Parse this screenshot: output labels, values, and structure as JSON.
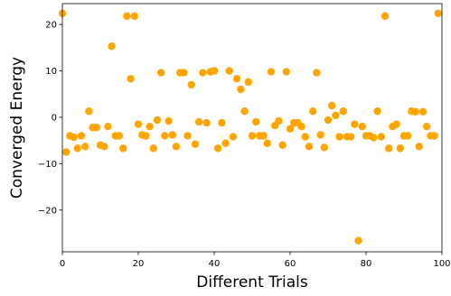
{
  "chart_data": {
    "type": "scatter",
    "xlabel": "Different Trials",
    "ylabel": "Converged Energy",
    "xlim": [
      0,
      100
    ],
    "ylim": [
      -29,
      24.5
    ],
    "xticks": [
      0,
      20,
      40,
      60,
      80,
      100
    ],
    "yticks": [
      -20,
      -10,
      0,
      10,
      20
    ],
    "xtick_labels": [
      "0",
      "20",
      "40",
      "60",
      "80",
      "100"
    ],
    "ytick_labels": [
      "−20",
      "−10",
      "0",
      "10",
      "20"
    ],
    "grid": false,
    "marker_color": "#FFA500",
    "series": [
      {
        "points": [
          [
            0,
            22.4
          ],
          [
            1,
            -7.5
          ],
          [
            2,
            -4
          ],
          [
            3,
            -4.3
          ],
          [
            4,
            -6.7
          ],
          [
            5,
            -4
          ],
          [
            6,
            -6.3
          ],
          [
            7,
            1.3
          ],
          [
            8,
            -2.2
          ],
          [
            9,
            -2.2
          ],
          [
            10,
            -6
          ],
          [
            11,
            -6.3
          ],
          [
            12,
            -2
          ],
          [
            13,
            15.3
          ],
          [
            14,
            -4
          ],
          [
            15,
            -4
          ],
          [
            16,
            -6.7
          ],
          [
            17,
            21.8
          ],
          [
            18,
            8.3
          ],
          [
            19,
            21.8
          ],
          [
            20,
            -1.5
          ],
          [
            21,
            -3.8
          ],
          [
            22,
            -4
          ],
          [
            23,
            -2
          ],
          [
            24,
            -6.7
          ],
          [
            25,
            -0.6
          ],
          [
            26,
            9.6
          ],
          [
            27,
            -4
          ],
          [
            28,
            -0.8
          ],
          [
            29,
            -3.8
          ],
          [
            30,
            -6.3
          ],
          [
            31,
            9.6
          ],
          [
            32,
            9.6
          ],
          [
            33,
            -4
          ],
          [
            34,
            7
          ],
          [
            35,
            -5.8
          ],
          [
            36,
            -1
          ],
          [
            37,
            9.6
          ],
          [
            38,
            -1.2
          ],
          [
            39,
            9.8
          ],
          [
            40,
            10
          ],
          [
            41,
            -6.7
          ],
          [
            42,
            -1.2
          ],
          [
            43,
            -5.6
          ],
          [
            44,
            10
          ],
          [
            45,
            -4.2
          ],
          [
            46,
            8.3
          ],
          [
            47,
            6
          ],
          [
            48,
            1.3
          ],
          [
            49,
            7.6
          ],
          [
            50,
            -4
          ],
          [
            51,
            -1
          ],
          [
            52,
            -4
          ],
          [
            53,
            -4
          ],
          [
            54,
            -5.6
          ],
          [
            55,
            9.8
          ],
          [
            56,
            -1.8
          ],
          [
            57,
            -0.8
          ],
          [
            58,
            -6
          ],
          [
            59,
            9.8
          ],
          [
            60,
            -2.5
          ],
          [
            61,
            -1.2
          ],
          [
            62,
            -1.2
          ],
          [
            63,
            -2
          ],
          [
            64,
            -4.2
          ],
          [
            65,
            -6.3
          ],
          [
            66,
            1.3
          ],
          [
            67,
            9.6
          ],
          [
            68,
            -3.8
          ],
          [
            69,
            -6.5
          ],
          [
            70,
            -0.6
          ],
          [
            71,
            2.5
          ],
          [
            72,
            0.4
          ],
          [
            73,
            -4.2
          ],
          [
            74,
            1.3
          ],
          [
            75,
            -4.2
          ],
          [
            76,
            -4.2
          ],
          [
            77,
            -1.5
          ],
          [
            78,
            -26.6
          ],
          [
            79,
            -2
          ],
          [
            80,
            -4
          ],
          [
            81,
            -4
          ],
          [
            82,
            -4.4
          ],
          [
            83,
            1.3
          ],
          [
            84,
            -4.2
          ],
          [
            85,
            21.8
          ],
          [
            86,
            -6.7
          ],
          [
            87,
            -2
          ],
          [
            88,
            -1.5
          ],
          [
            89,
            -6.7
          ],
          [
            90,
            -4
          ],
          [
            91,
            -4
          ],
          [
            92,
            1.3
          ],
          [
            93,
            1.2
          ],
          [
            94,
            -6.3
          ],
          [
            95,
            1.2
          ],
          [
            96,
            -2
          ],
          [
            97,
            -4
          ],
          [
            98,
            -4
          ],
          [
            99,
            22.4
          ]
        ]
      }
    ]
  }
}
